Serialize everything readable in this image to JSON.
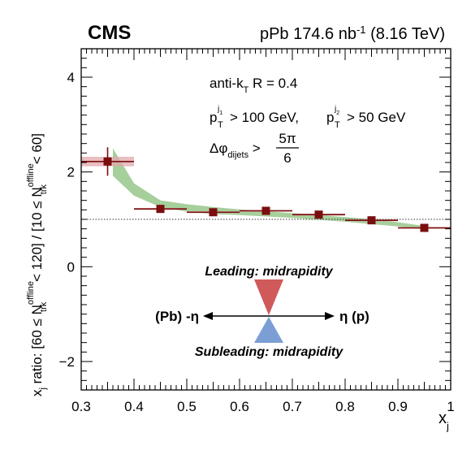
{
  "header": {
    "experiment": "CMS",
    "dataset_prefix": "pPb 174.6 nb",
    "dataset_exp": "-1",
    "dataset_suffix": " (8.16 TeV)"
  },
  "annotations": {
    "jet_algo_main": "anti-k",
    "jet_algo_sub": "T",
    "jet_algo_rest": " R = 0.4",
    "cut_p": "p",
    "cut_sup1": "j",
    "cut_sup1_sub": "1",
    "cut_subT": "T",
    "cut_text1": " > 100 GeV, ",
    "cut_p2": "p",
    "cut_sup2": "j",
    "cut_sup2_sub": "2",
    "cut_subT2": "T",
    "cut_text2": " > 50 GeV",
    "dphi_sym": "Δφ",
    "dphi_sub": "dijets",
    "dphi_gt": " > ",
    "dphi_num": "5π",
    "dphi_den": "6"
  },
  "inset": {
    "leading_label": "Leading: midrapidity",
    "subleading_label": "Subleading: midrapidity",
    "left_label": "(Pb) -η",
    "right_label": "η (p)",
    "leading_color": "#d05a5a",
    "subleading_color": "#7b9fd4"
  },
  "chart_data": {
    "type": "scatter",
    "xlabel_main": "x",
    "xlabel_sub": "j",
    "ylabel": {
      "a": "x",
      "a_sub": "j",
      "b": " ratio: [60 ≤ N",
      "b_sup": "offline",
      "b_sub": "trk",
      "c": " < 120] / [10 ≤ N",
      "c_sup": "offline",
      "c_sub": "trk",
      "d": " < 60]"
    },
    "xlim": [
      0.3,
      1.0
    ],
    "ylim": [
      -2.6,
      4.6
    ],
    "x_ticks": [
      0.3,
      0.4,
      0.5,
      0.6,
      0.7,
      0.8,
      0.9,
      1.0
    ],
    "x_tick_labels": [
      "0.3",
      "0.4",
      "0.5",
      "0.6",
      "0.7",
      "0.8",
      "0.9",
      "1"
    ],
    "y_ticks": [
      -2,
      0,
      2,
      4
    ],
    "y_tick_labels": [
      "−2",
      "0",
      "2",
      "4"
    ],
    "reference_line": 1.0,
    "data": {
      "x": [
        0.35,
        0.45,
        0.55,
        0.65,
        0.75,
        0.85,
        0.95
      ],
      "y": [
        2.22,
        1.22,
        1.15,
        1.18,
        1.1,
        0.98,
        0.82
      ],
      "xerr": [
        0.05,
        0.05,
        0.05,
        0.05,
        0.05,
        0.05,
        0.05
      ],
      "stat_err": [
        0.3,
        0.04,
        0.03,
        0.03,
        0.03,
        0.03,
        0.03
      ],
      "syst_err": [
        0.1,
        0.02,
        0.02,
        0.02,
        0.02,
        0.02,
        0.02
      ],
      "color": "#7a0e0e",
      "syst_color": "#e0a8ac"
    },
    "band": {
      "x": [
        0.36,
        0.4,
        0.45,
        0.5,
        0.55,
        0.6,
        0.65,
        0.7,
        0.75,
        0.8,
        0.85,
        0.9,
        0.95
      ],
      "low": [
        1.92,
        1.5,
        1.26,
        1.16,
        1.11,
        1.09,
        1.06,
        1.03,
        0.99,
        0.95,
        0.9,
        0.85,
        0.79
      ],
      "high": [
        2.5,
        1.76,
        1.4,
        1.32,
        1.26,
        1.21,
        1.17,
        1.13,
        1.09,
        1.05,
        1.0,
        0.94,
        0.86
      ],
      "color": "#a6cf9c"
    }
  }
}
